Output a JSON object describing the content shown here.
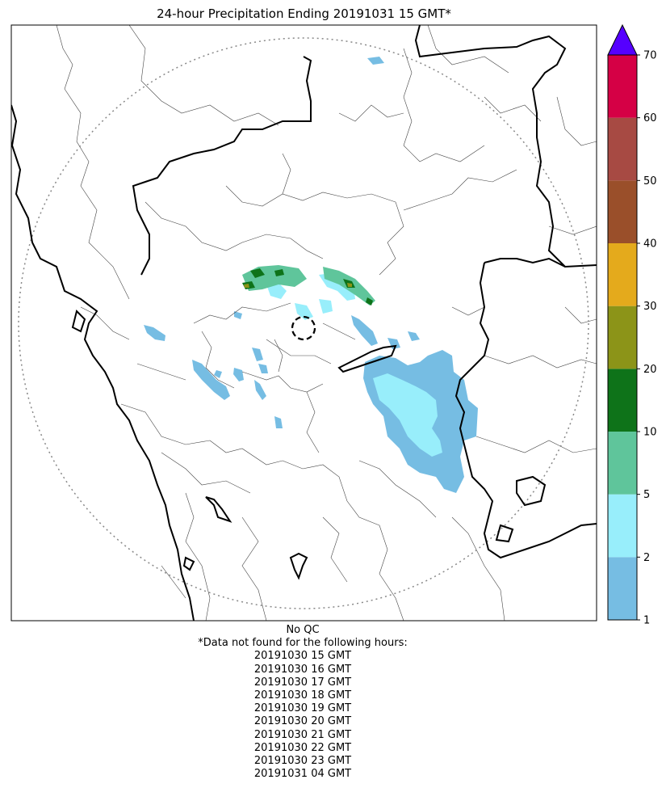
{
  "title": "24-hour Precipitation Ending 20191031 15 GMT*",
  "qc_note": "No QC",
  "missing_header": "*Data not found for the following hours:",
  "missing_hours": [
    "20191030 15 GMT",
    "20191030 16 GMT",
    "20191030 17 GMT",
    "20191030 18 GMT",
    "20191030 19 GMT",
    "20191030 20 GMT",
    "20191030 21 GMT",
    "20191030 22 GMT",
    "20191030 23 GMT",
    "20191031 04 GMT"
  ],
  "colorbar": {
    "levels": [
      "1",
      "2",
      "5",
      "10",
      "20",
      "30",
      "40",
      "50",
      "60",
      "70"
    ],
    "colors": [
      "#76bde3",
      "#98eefb",
      "#5fc59b",
      "#0e7319",
      "#8c9418",
      "#e4aa1c",
      "#9a4f2a",
      "#a74a43",
      "#d50045"
    ],
    "extend_color": "#5500ff"
  },
  "colors": {
    "light_rain": "#76bde3",
    "moderate_rain": "#98eefb",
    "green": "#5fc59b",
    "dark_green": "#0e7319",
    "olive": "#8c9418"
  }
}
